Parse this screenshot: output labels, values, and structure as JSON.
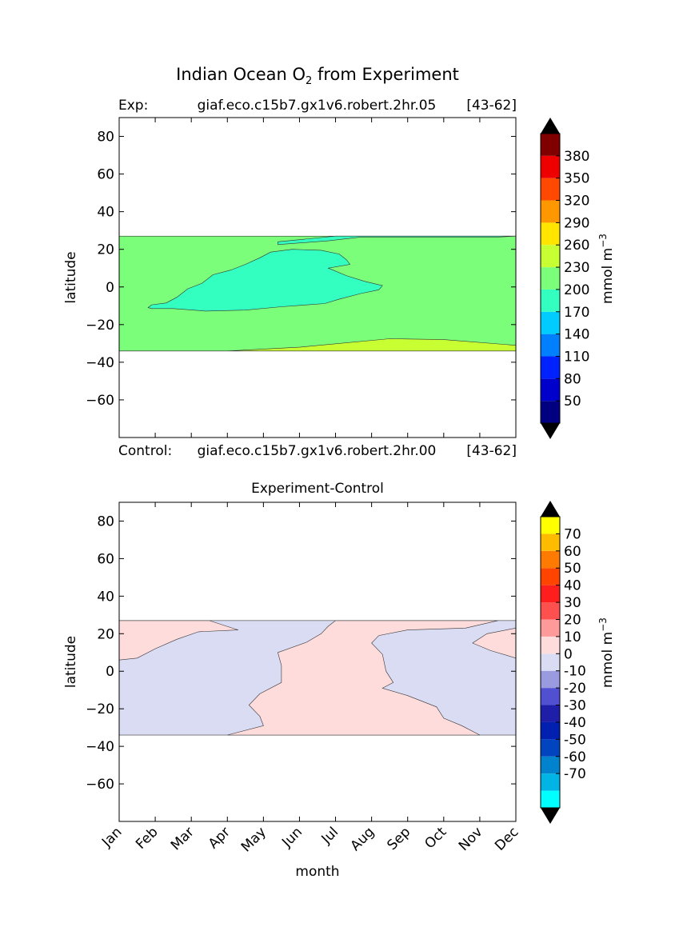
{
  "figure": {
    "title_main": "Indian Ocean O",
    "title_sub": "2",
    "title_rest": " from Experiment",
    "exp_label": "Exp:",
    "exp_run": "giaf.eco.c15b7.gx1v6.robert.2hr.05",
    "exp_years": "[43-62]",
    "control_label": "Control:",
    "control_run": "giaf.eco.c15b7.gx1v6.robert.2hr.00",
    "control_years": "[43-62]",
    "diff_title": "Experiment-Control"
  },
  "chart_data": [
    {
      "type": "heatmap",
      "subtype": "filled-contour",
      "name": "top-panel",
      "ylabel": "latitude",
      "xlim": [
        0,
        11
      ],
      "ylim": [
        -80,
        90
      ],
      "yticks": [
        80,
        60,
        40,
        20,
        0,
        -20,
        -40,
        -60
      ],
      "data_lat_range": [
        -34,
        27
      ],
      "regions": [
        {
          "level": "200-230",
          "color": "#7bff7b",
          "extent": {
            "x": [
              0,
              11
            ],
            "y": [
              -34,
              27
            ]
          }
        },
        {
          "level": "230-260",
          "color": "#c8ff33",
          "boundary": [
            [
              0,
              -34
            ],
            [
              3,
              -34
            ],
            [
              5,
              -32
            ],
            [
              7.5,
              -27.5
            ],
            [
              9,
              -28
            ],
            [
              11,
              -31
            ],
            [
              11,
              -34
            ]
          ]
        },
        {
          "level": "170-200",
          "color": "#33ffc0",
          "boundary": [
            [
              0.9,
              -11.5
            ],
            [
              1.5,
              -11.5
            ],
            [
              2.4,
              -12.8
            ],
            [
              3.5,
              -12.3
            ],
            [
              4.5,
              -10.5
            ],
            [
              5.7,
              -8.8
            ],
            [
              6.1,
              -6.5
            ],
            [
              6.7,
              -3.5
            ],
            [
              7.2,
              -1.5
            ],
            [
              7.3,
              0.7
            ],
            [
              6.8,
              3
            ],
            [
              6.3,
              6
            ],
            [
              5.8,
              10
            ],
            [
              6.4,
              12
            ],
            [
              6.3,
              14.5
            ],
            [
              6.1,
              17.5
            ],
            [
              5.6,
              19.5
            ],
            [
              4.8,
              20
            ],
            [
              4.2,
              18.5
            ],
            [
              3.9,
              15.5
            ],
            [
              3.5,
              12
            ],
            [
              3.1,
              9
            ],
            [
              2.6,
              6.5
            ],
            [
              2.3,
              2
            ],
            [
              1.9,
              -1
            ],
            [
              1.6,
              -5.5
            ],
            [
              1.3,
              -8.5
            ],
            [
              0.9,
              -9.5
            ],
            [
              0.8,
              -11
            ]
          ]
        },
        {
          "level": "170-200",
          "color": "#33ffc0",
          "boundary": [
            [
              4.4,
              22.5
            ],
            [
              5.8,
              24.5
            ],
            [
              6.7,
              26.5
            ],
            [
              8.5,
              26.5
            ],
            [
              10.5,
              26.5
            ],
            [
              11,
              27
            ],
            [
              6,
              27
            ],
            [
              4.4,
              24
            ]
          ]
        }
      ],
      "colorbar": {
        "label": "mmol m",
        "label_sup": "−3",
        "tick_labels": [
          "380",
          "350",
          "320",
          "290",
          "260",
          "230",
          "200",
          "170",
          "140",
          "110",
          "80",
          "50"
        ],
        "colors": [
          "#000080",
          "#0000cd",
          "#0022ff",
          "#0080ff",
          "#00ccff",
          "#33ffc0",
          "#7bff7b",
          "#c8ff33",
          "#ffe500",
          "#ff9800",
          "#ff4800",
          "#ee0000",
          "#800000"
        ],
        "extend": "both"
      }
    },
    {
      "type": "heatmap",
      "subtype": "filled-contour",
      "name": "bottom-panel",
      "title": "Experiment-Control",
      "xlabel": "month",
      "ylabel": "latitude",
      "categories": [
        "Jan",
        "Feb",
        "Mar",
        "Apr",
        "May",
        "Jun",
        "Jul",
        "Aug",
        "Sep",
        "Oct",
        "Nov",
        "Dec"
      ],
      "xlim": [
        0,
        11
      ],
      "ylim": [
        -80,
        90
      ],
      "yticks": [
        80,
        60,
        40,
        20,
        0,
        -20,
        -40,
        -60
      ],
      "data_lat_range": [
        -34,
        27
      ],
      "regions": [
        {
          "level": "-10-0",
          "color": "#dadcf4",
          "extent": {
            "x": [
              0,
              11
            ],
            "y": [
              -34,
              27
            ]
          }
        },
        {
          "level": "0-10",
          "color": "#ffdcdc",
          "boundary": [
            [
              3,
              -34
            ],
            [
              4,
              -29
            ],
            [
              3.9,
              -24
            ],
            [
              3.6,
              -18
            ],
            [
              3.9,
              -12
            ],
            [
              4.5,
              -6
            ],
            [
              4.5,
              3
            ],
            [
              4.4,
              10
            ],
            [
              5.2,
              15.5
            ],
            [
              5.6,
              20
            ],
            [
              5.8,
              24
            ],
            [
              6,
              27
            ],
            [
              10.5,
              27
            ],
            [
              9.6,
              23
            ],
            [
              8,
              22
            ],
            [
              7.2,
              19
            ],
            [
              7,
              15
            ],
            [
              7.3,
              9
            ],
            [
              7.4,
              0
            ],
            [
              7.6,
              -6
            ],
            [
              7.3,
              -9
            ],
            [
              8,
              -13
            ],
            [
              8.8,
              -19
            ],
            [
              9,
              -25
            ],
            [
              9.5,
              -29
            ],
            [
              10,
              -34
            ]
          ]
        },
        {
          "level": "0-10",
          "color": "#ffdcdc",
          "boundary": [
            [
              0,
              27
            ],
            [
              2.5,
              27
            ],
            [
              3.3,
              22
            ],
            [
              2.2,
              21
            ],
            [
              1.6,
              17
            ],
            [
              1.0,
              12
            ],
            [
              0.5,
              7
            ],
            [
              0,
              6
            ]
          ]
        },
        {
          "level": "0-10",
          "color": "#ffdcdc",
          "boundary": [
            [
              11,
              23
            ],
            [
              10.2,
              20
            ],
            [
              9.8,
              15
            ],
            [
              10.3,
              11
            ],
            [
              11,
              7
            ]
          ]
        }
      ],
      "colorbar": {
        "label": "mmol m",
        "label_sup": "−3",
        "tick_labels": [
          "70",
          "60",
          "50",
          "40",
          "30",
          "20",
          "10",
          "0",
          "-10",
          "-20",
          "-30",
          "-40",
          "-50",
          "-60",
          "-70"
        ],
        "colors": [
          "#00ffff",
          "#00b4e6",
          "#0082cc",
          "#0044c0",
          "#0020b0",
          "#1e1ea8",
          "#5050d0",
          "#9a9ae0",
          "#dadcf4",
          "#ffdcdc",
          "#ff9a9a",
          "#ff5050",
          "#ff1e1e",
          "#ff4400",
          "#ff7a00",
          "#ffbb00",
          "#ffff00"
        ],
        "extend": "both"
      }
    }
  ]
}
